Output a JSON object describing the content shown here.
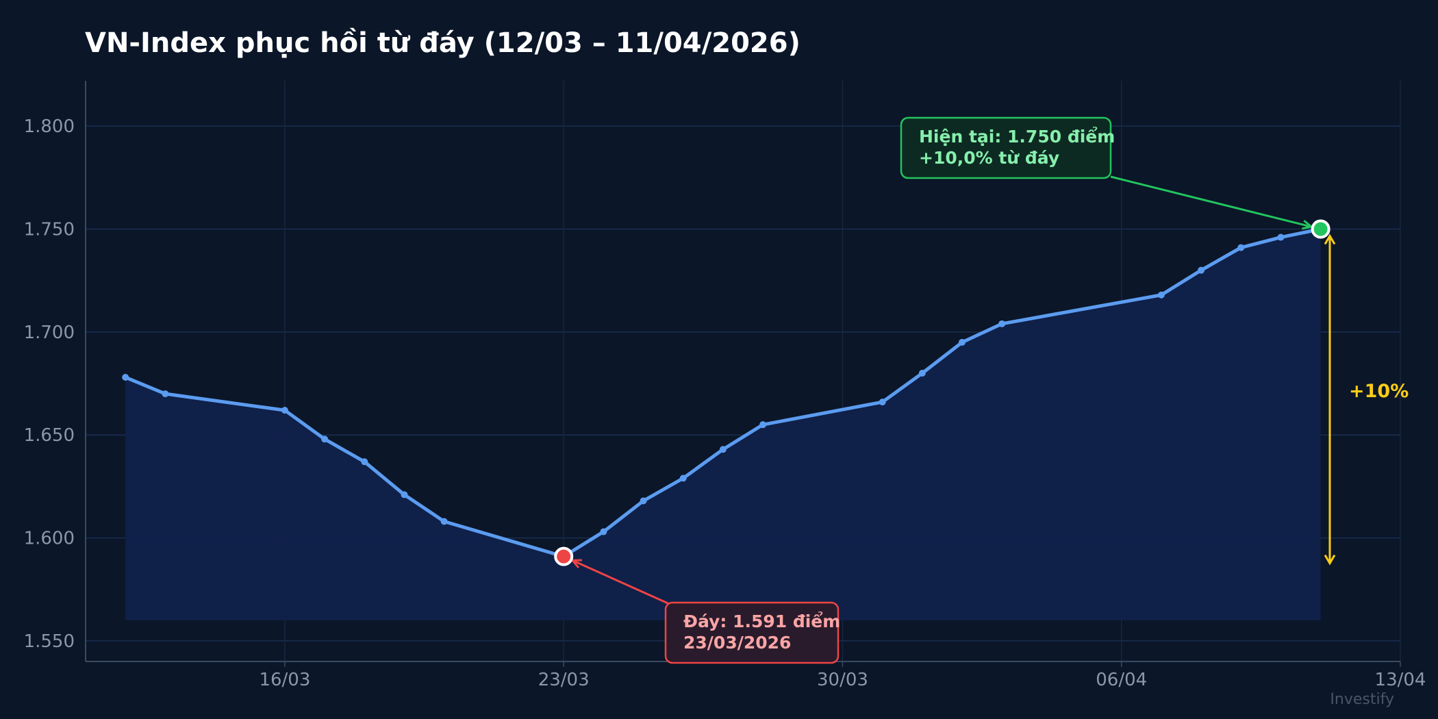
{
  "chart_data": {
    "type": "line",
    "title": "VN-Index phục hồi từ đáy (12/03 – 11/04/2026)",
    "xlabel": "",
    "ylabel": "",
    "ylim": [
      1540,
      1822
    ],
    "xlim": [
      "2026-03-11",
      "2026-04-13"
    ],
    "yticks": [
      1550,
      1600,
      1650,
      1700,
      1750,
      1800
    ],
    "ytick_labels": [
      "1.550",
      "1.600",
      "1.650",
      "1.700",
      "1.750",
      "1.800"
    ],
    "xticks": [
      "2026-03-16",
      "2026-03-23",
      "2026-03-30",
      "2026-04-06",
      "2026-04-13"
    ],
    "xtick_labels": [
      "16/03",
      "23/03",
      "30/03",
      "06/04",
      "13/04"
    ],
    "grid": true,
    "area_baseline": 1560,
    "series": [
      {
        "points": [
          [
            "2026-03-12",
            1678
          ],
          [
            "2026-03-13",
            1670
          ],
          [
            "2026-03-16",
            1662
          ],
          [
            "2026-03-17",
            1648
          ],
          [
            "2026-03-18",
            1637
          ],
          [
            "2026-03-19",
            1621
          ],
          [
            "2026-03-20",
            1608
          ],
          [
            "2026-03-23",
            1591
          ],
          [
            "2026-03-24",
            1603
          ],
          [
            "2026-03-25",
            1618
          ],
          [
            "2026-03-26",
            1629
          ],
          [
            "2026-03-27",
            1643
          ],
          [
            "2026-03-28",
            1655
          ],
          [
            "2026-03-31",
            1666
          ],
          [
            "2026-04-01",
            1680
          ],
          [
            "2026-04-02",
            1695
          ],
          [
            "2026-04-03",
            1704
          ],
          [
            "2026-04-07",
            1718
          ],
          [
            "2026-04-08",
            1730
          ],
          [
            "2026-04-09",
            1741
          ],
          [
            "2026-04-10",
            1746
          ],
          [
            "2026-04-11",
            1750
          ]
        ]
      }
    ],
    "annotations": [
      {
        "kind": "low",
        "point": [
          "2026-03-23",
          1591
        ],
        "lines": [
          "Đáy: 1.591 điểm",
          "23/03/2026"
        ]
      },
      {
        "kind": "current",
        "point": [
          "2026-04-11",
          1750
        ],
        "lines": [
          "Hiện tại: 1.750 điểm",
          "+10,0% từ đáy"
        ]
      }
    ],
    "range_marker": {
      "from": 1591,
      "to": 1750,
      "label": "+10%"
    },
    "watermark": "Investify"
  },
  "colors": {
    "background": "#0b1628",
    "line": "#5b9cf0",
    "area": "#10214b",
    "grid_h": "#1a2f52",
    "grid_v": "#18263f",
    "axis": "#3a4a63",
    "tick_text": "#8c98aa",
    "title": "#ffffff",
    "low": "#ef4444",
    "low_text": "#fca5a5",
    "low_box_fill": "#2a1b2c",
    "current": "#22c55e",
    "current_text": "#86efac",
    "current_box_fill": "#0d2a22",
    "range": "#facc15",
    "watermark": "#4a5568"
  }
}
